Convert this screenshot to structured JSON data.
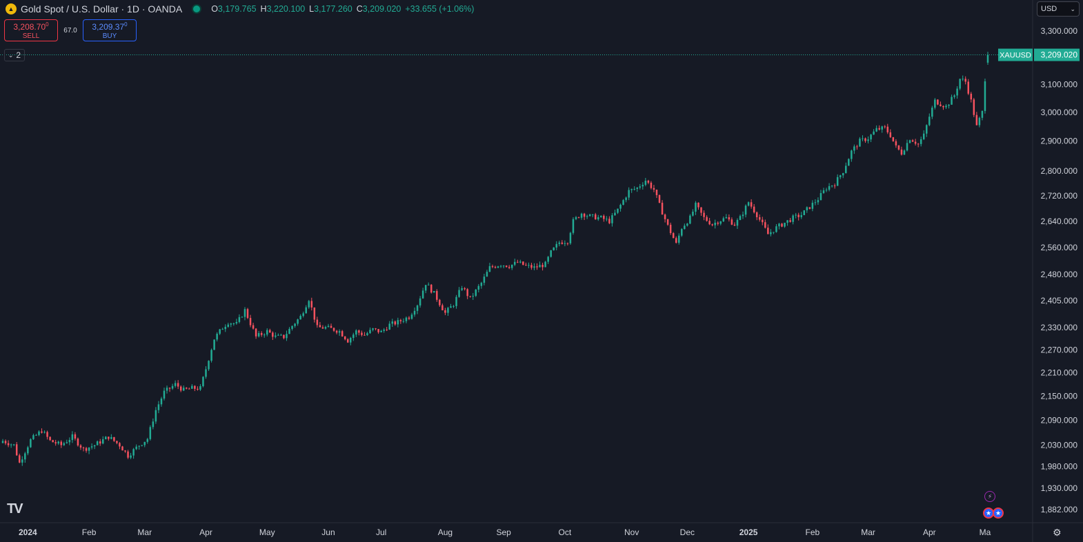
{
  "header": {
    "title": "Gold Spot / U.S. Dollar · 1D · OANDA",
    "ohlc": {
      "o_label": "O",
      "o": "3,179.765",
      "h_label": "H",
      "h": "3,220.100",
      "l_label": "L",
      "l": "3,177.260",
      "c_label": "C",
      "c": "3,209.020",
      "change": "+33.655 (+1.06%)"
    }
  },
  "trade": {
    "sell_price": "3,208.70",
    "sell_price_small": "0",
    "sell_label": "SELL",
    "spread": "67.0",
    "buy_price": "3,209.37",
    "buy_price_small": "0",
    "buy_label": "BUY"
  },
  "collapse": {
    "count": "2",
    "icon": "chevron-down-icon"
  },
  "currency": {
    "label": "USD",
    "icon": "chevron-down-icon"
  },
  "colors": {
    "up": "#22ab94",
    "down": "#f7525f",
    "background": "#161a25",
    "grid_text": "#d1d4dc",
    "last_price_line": "#22ab94"
  },
  "chart_data": {
    "type": "candlestick",
    "series_name": "XAUUSD",
    "last_price": 3209.02,
    "last_price_label": "3,209.020",
    "y_scale": "log",
    "ylim": [
      1860,
      3320
    ],
    "y_ticks": [
      {
        "v": 3300,
        "label": "3,300.000"
      },
      {
        "v": 3100,
        "label": "3,100.000"
      },
      {
        "v": 3000,
        "label": "3,000.000"
      },
      {
        "v": 2900,
        "label": "2,900.000"
      },
      {
        "v": 2800,
        "label": "2,800.000"
      },
      {
        "v": 2720,
        "label": "2,720.000"
      },
      {
        "v": 2640,
        "label": "2,640.000"
      },
      {
        "v": 2560,
        "label": "2,560.000"
      },
      {
        "v": 2480,
        "label": "2,480.000"
      },
      {
        "v": 2405,
        "label": "2,405.000"
      },
      {
        "v": 2330,
        "label": "2,330.000"
      },
      {
        "v": 2270,
        "label": "2,270.000"
      },
      {
        "v": 2210,
        "label": "2,210.000"
      },
      {
        "v": 2150,
        "label": "2,150.000"
      },
      {
        "v": 2090,
        "label": "2,090.000"
      },
      {
        "v": 2030,
        "label": "2,030.000"
      },
      {
        "v": 1980,
        "label": "1,980.000"
      },
      {
        "v": 1930,
        "label": "1,930.000"
      },
      {
        "v": 1882,
        "label": "1,882.000"
      }
    ],
    "x_labels": [
      "2024",
      "Feb",
      "Mar",
      "Apr",
      "May",
      "Jun",
      "Jul",
      "Aug",
      "Sep",
      "Oct",
      "Nov",
      "Dec",
      "2025",
      "Feb",
      "Mar",
      "Apr",
      "Ma"
    ],
    "x_label_index": [
      9,
      31,
      51,
      73,
      95,
      117,
      136,
      159,
      180,
      202,
      226,
      246,
      268,
      291,
      311,
      333,
      353
    ],
    "x_index_range": [
      -1,
      358
    ],
    "anchors": [
      [
        0,
        2040
      ],
      [
        4,
        2030
      ],
      [
        6,
        1988
      ],
      [
        10,
        2042
      ],
      [
        14,
        2065
      ],
      [
        17,
        2040
      ],
      [
        21,
        2030
      ],
      [
        25,
        2050
      ],
      [
        29,
        2020
      ],
      [
        33,
        2030
      ],
      [
        38,
        2050
      ],
      [
        42,
        2030
      ],
      [
        45,
        2005
      ],
      [
        49,
        2030
      ],
      [
        52,
        2045
      ],
      [
        55,
        2115
      ],
      [
        58,
        2160
      ],
      [
        62,
        2180
      ],
      [
        65,
        2165
      ],
      [
        68,
        2170
      ],
      [
        71,
        2170
      ],
      [
        73,
        2220
      ],
      [
        76,
        2300
      ],
      [
        79,
        2330
      ],
      [
        81,
        2345
      ],
      [
        84,
        2340
      ],
      [
        87,
        2378
      ],
      [
        91,
        2305
      ],
      [
        95,
        2320
      ],
      [
        98,
        2305
      ],
      [
        101,
        2305
      ],
      [
        104,
        2335
      ],
      [
        107,
        2360
      ],
      [
        110,
        2410
      ],
      [
        113,
        2330
      ],
      [
        116,
        2330
      ],
      [
        119,
        2325
      ],
      [
        121,
        2320
      ],
      [
        124,
        2295
      ],
      [
        127,
        2320
      ],
      [
        130,
        2310
      ],
      [
        133,
        2325
      ],
      [
        136,
        2318
      ],
      [
        139,
        2338
      ],
      [
        142,
        2345
      ],
      [
        146,
        2360
      ],
      [
        149,
        2395
      ],
      [
        152,
        2455
      ],
      [
        155,
        2425
      ],
      [
        159,
        2370
      ],
      [
        162,
        2395
      ],
      [
        165,
        2445
      ],
      [
        168,
        2410
      ],
      [
        172,
        2455
      ],
      [
        175,
        2500
      ],
      [
        179,
        2510
      ],
      [
        182,
        2505
      ],
      [
        185,
        2515
      ],
      [
        188,
        2505
      ],
      [
        191,
        2500
      ],
      [
        195,
        2510
      ],
      [
        197,
        2545
      ],
      [
        200,
        2575
      ],
      [
        203,
        2580
      ],
      [
        205,
        2640
      ],
      [
        208,
        2665
      ],
      [
        211,
        2655
      ],
      [
        215,
        2650
      ],
      [
        218,
        2640
      ],
      [
        221,
        2675
      ],
      [
        225,
        2735
      ],
      [
        228,
        2745
      ],
      [
        231,
        2770
      ],
      [
        234,
        2740
      ],
      [
        236,
        2690
      ],
      [
        239,
        2625
      ],
      [
        242,
        2570
      ],
      [
        244,
        2620
      ],
      [
        247,
        2650
      ],
      [
        249,
        2690
      ],
      [
        252,
        2650
      ],
      [
        255,
        2630
      ],
      [
        257,
        2640
      ],
      [
        260,
        2650
      ],
      [
        263,
        2630
      ],
      [
        265,
        2650
      ],
      [
        268,
        2700
      ],
      [
        271,
        2660
      ],
      [
        273,
        2630
      ],
      [
        275,
        2600
      ],
      [
        278,
        2620
      ],
      [
        281,
        2635
      ],
      [
        284,
        2650
      ],
      [
        287,
        2660
      ],
      [
        290,
        2685
      ],
      [
        293,
        2710
      ],
      [
        296,
        2745
      ],
      [
        299,
        2760
      ],
      [
        302,
        2800
      ],
      [
        305,
        2865
      ],
      [
        308,
        2900
      ],
      [
        311,
        2910
      ],
      [
        314,
        2940
      ],
      [
        317,
        2945
      ],
      [
        319,
        2920
      ],
      [
        321,
        2880
      ],
      [
        323,
        2860
      ],
      [
        326,
        2910
      ],
      [
        329,
        2890
      ],
      [
        331,
        2920
      ],
      [
        333,
        2985
      ],
      [
        335,
        3040
      ],
      [
        337,
        3030
      ],
      [
        339,
        3020
      ],
      [
        342,
        3060
      ],
      [
        344,
        3120
      ],
      [
        346,
        3110
      ],
      [
        348,
        3040
      ],
      [
        350,
        2950
      ],
      [
        352,
        3000
      ],
      [
        353,
        3120
      ],
      [
        354,
        3209.02
      ]
    ],
    "grid": false,
    "legend": "top-left"
  }
}
